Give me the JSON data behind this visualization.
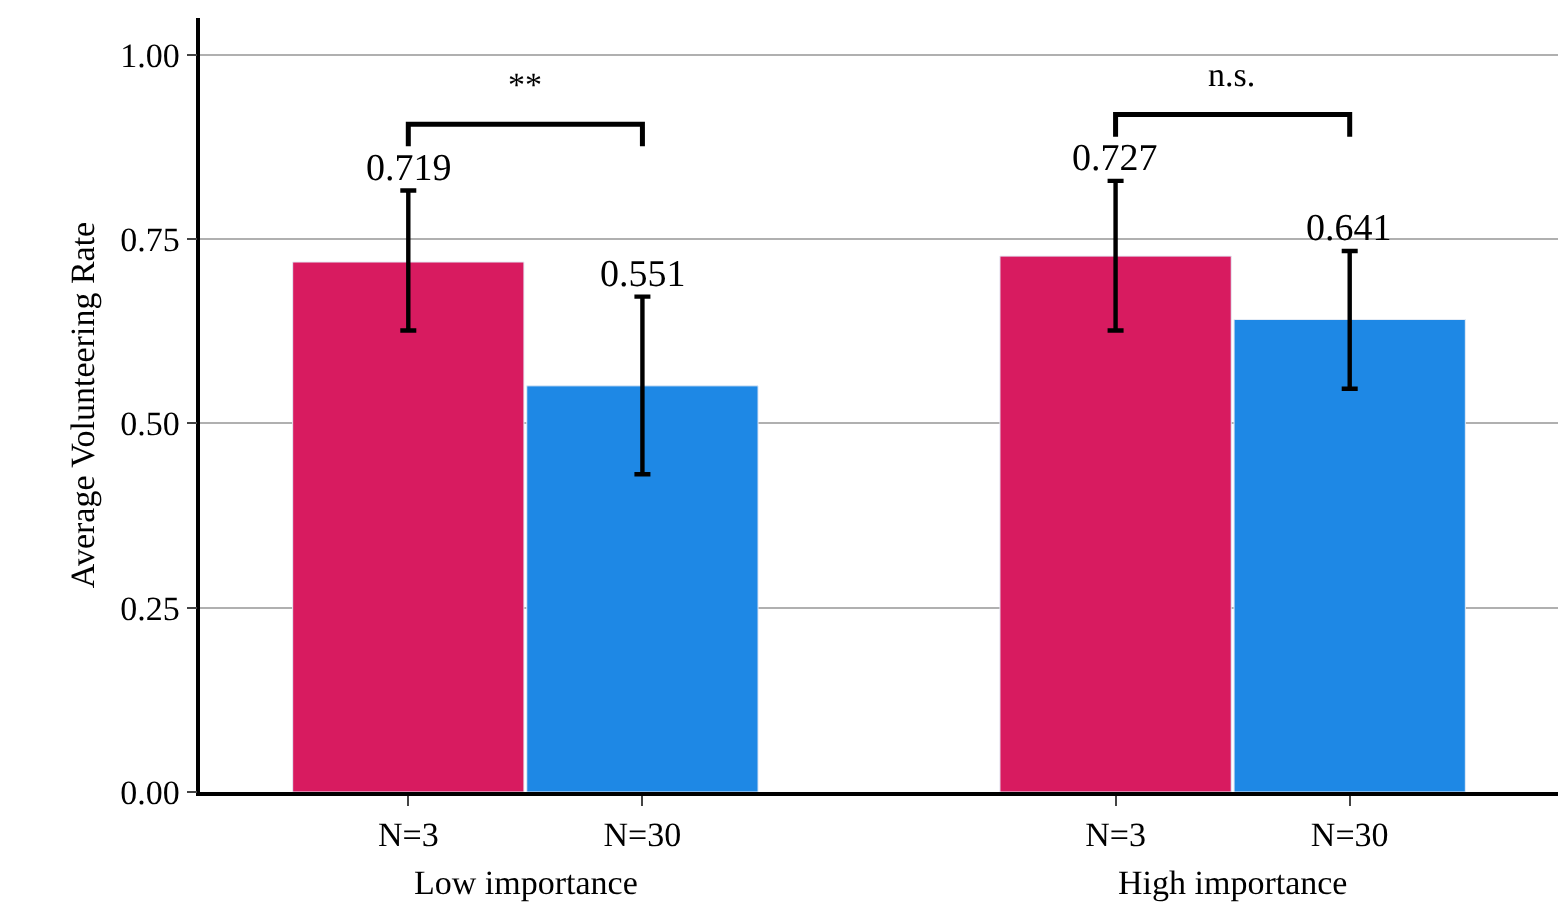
{
  "chart_data": {
    "type": "bar",
    "categories": [
      "Low importance",
      "High importance"
    ],
    "series": [
      {
        "name": "N=3",
        "color": "#d81b60",
        "values": [
          0.719,
          0.727
        ],
        "errors": [
          [
            0.626,
            0.816
          ],
          [
            0.626,
            0.829
          ]
        ]
      },
      {
        "name": "N=30",
        "color": "#1e88e5",
        "values": [
          0.551,
          0.641
        ],
        "errors": [
          [
            0.431,
            0.672
          ],
          [
            0.547,
            0.734
          ]
        ]
      }
    ],
    "ylabel": "Average Volunteering Rate",
    "ylim": [
      0,
      1.05
    ],
    "yticks": [
      {
        "value": 0,
        "label": "0.00"
      },
      {
        "value": 0.25,
        "label": "0.25"
      },
      {
        "value": 0.5,
        "label": "0.50"
      },
      {
        "value": 0.75,
        "label": "0.75"
      },
      {
        "value": 1,
        "label": "1.00"
      }
    ],
    "grid": "y",
    "legend": false,
    "data_labels": true,
    "annotations": [
      "**",
      "n.s."
    ]
  }
}
